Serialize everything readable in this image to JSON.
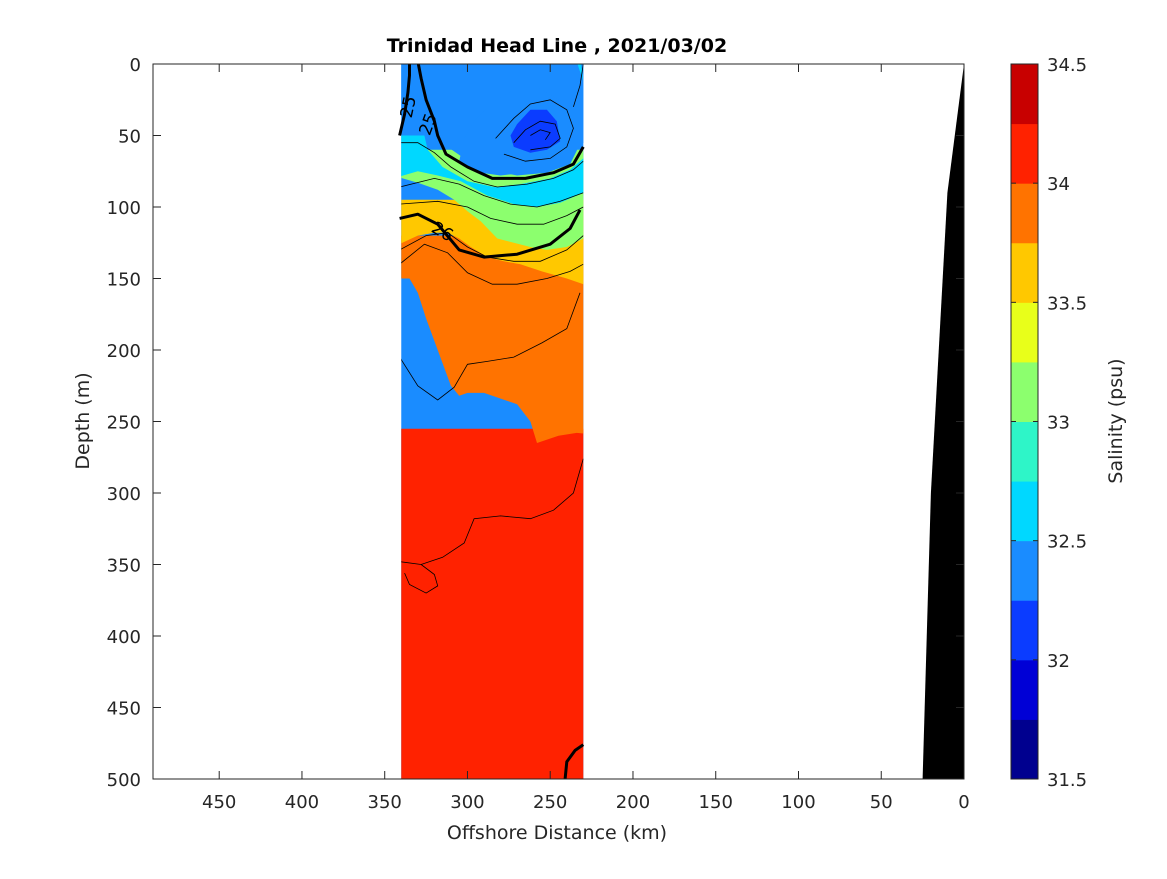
{
  "chart_data": {
    "type": "contour",
    "title": "Trinidad Head Line , 2021/03/02",
    "xlabel": "Offshore Distance (km)",
    "ylabel": "Depth (m)",
    "xlim": [
      490,
      0
    ],
    "xdir": "reversed",
    "ylim": [
      0,
      500
    ],
    "ydir": "reversed",
    "x_ticks": [
      450,
      400,
      350,
      300,
      250,
      200,
      150,
      100,
      50,
      0
    ],
    "y_ticks": [
      0,
      50,
      100,
      150,
      200,
      250,
      300,
      350,
      400,
      450,
      500
    ],
    "grid": false,
    "data_extent_x_km": [
      340,
      230
    ],
    "colorbar": {
      "label": "Salinity (psu)",
      "range": [
        31.5,
        34.5
      ],
      "step": 0.25,
      "tick_values": [
        31.5,
        32,
        32.5,
        33,
        33.5,
        34,
        34.5
      ],
      "tick_labels": [
        "31.5",
        "32",
        "32.5",
        "33",
        "33.5",
        "34",
        "34.5"
      ],
      "colors": [
        "#00008f",
        "#0000d6",
        "#0b3cff",
        "#1a8cff",
        "#00d8ff",
        "#2ef5c8",
        "#8cff6e",
        "#e8ff1a",
        "#ffc800",
        "#ff7300",
        "#ff2200",
        "#c80000"
      ]
    },
    "salinity_zones": [
      {
        "salinity": 32.0,
        "description": "core minimum near 250 km, 45 m"
      },
      {
        "salinity": 32.25,
        "description": "low-salinity eddy 235-285 km, 20-75 m"
      },
      {
        "salinity": 32.4,
        "description": "surface layer 0-50 m"
      },
      {
        "salinity": 32.6,
        "description": "layer near 50-80 m offshore"
      },
      {
        "salinity": 33.1,
        "description": "halocline 80-120 m"
      },
      {
        "salinity": 33.6,
        "description": "120-160 m"
      },
      {
        "salinity": 33.9,
        "description": "160-260 m"
      },
      {
        "salinity": 34.1,
        "description": "below 260 m"
      }
    ],
    "density_contours": [
      {
        "sigma": 25,
        "labeled": true
      },
      {
        "sigma": 26,
        "labeled": true
      }
    ],
    "bathymetry": {
      "color": "#000000",
      "depth_at_offshore_km": [
        [
          0,
          0
        ],
        [
          10,
          90
        ],
        [
          20,
          300
        ],
        [
          25,
          500
        ]
      ]
    },
    "contour_labels": [
      "25",
      "25",
      "26"
    ]
  }
}
